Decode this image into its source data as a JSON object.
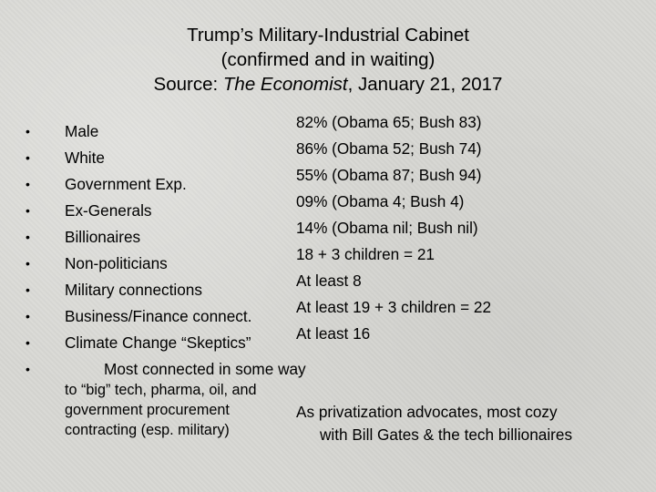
{
  "title": {
    "line1": "Trump’s Military-Industrial Cabinet",
    "line2": "(confirmed and in waiting)",
    "source_prefix": "Source: ",
    "source_publication": "The Economist",
    "source_suffix": ", January 21, 2017"
  },
  "bullet_glyph": "•",
  "categories": [
    {
      "label": "Male",
      "stat": "82% (Obama 65; Bush 83)"
    },
    {
      "label": "White",
      "stat": "86% (Obama 52; Bush 74)"
    },
    {
      "label": "Government Exp.",
      "stat": "55% (Obama 87; Bush 94)"
    },
    {
      "label": "Ex-Generals",
      "stat": "09% (Obama 4; Bush 4)"
    },
    {
      "label": "Billionaires",
      "stat": "14% (Obama nil; Bush nil)"
    },
    {
      "label": "Non-politicians",
      "stat": "18 + 3 children = 21"
    },
    {
      "label": "Military connections",
      "stat": "At least 8"
    },
    {
      "label": "Business/Finance connect.",
      "stat": "At least 19 + 3 children = 22"
    },
    {
      "label": "Climate Change “Skeptics”",
      "stat": "At least 16"
    }
  ],
  "last_item": {
    "label": "Most connected in some way",
    "sub_lines": [
      "to “big” tech, pharma, oil, and",
      "government procurement",
      "contracting (esp. military)"
    ]
  },
  "note": {
    "line1": "As privatization advocates, most cozy",
    "line2": "with Bill Gates & the tech billionaires"
  }
}
